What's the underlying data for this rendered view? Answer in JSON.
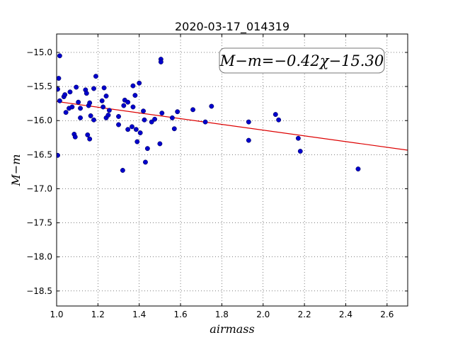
{
  "chart_data": {
    "type": "scatter",
    "title": "2020-03-17_014319",
    "xlabel": "airmass",
    "ylabel": "M−m",
    "xlim": [
      1.0,
      2.7
    ],
    "ylim": [
      -18.72,
      -14.73
    ],
    "y_inverted": false,
    "x_ticks": [
      1.0,
      1.2,
      1.4,
      1.6,
      1.8,
      2.0,
      2.2,
      2.4,
      2.6
    ],
    "x_tick_labels": [
      "1.0",
      "1.2",
      "1.4",
      "1.6",
      "1.8",
      "2.0",
      "2.2",
      "2.4",
      "2.6"
    ],
    "y_ticks": [
      -15.0,
      -15.5,
      -16.0,
      -16.5,
      -17.0,
      -17.5,
      -18.0,
      -18.5
    ],
    "y_tick_labels": [
      "−15.0",
      "−15.5",
      "−16.0",
      "−16.5",
      "−17.0",
      "−17.5",
      "−18.0",
      "−18.5"
    ],
    "grid": true,
    "annotation": "M−m=−0.42χ−15.30",
    "annotation_position": "top-right",
    "series": [
      {
        "kind": "points",
        "color": "#0000cc",
        "points": [
          [
            1.005,
            -15.54
          ],
          [
            1.005,
            -16.51
          ],
          [
            1.01,
            -15.38
          ],
          [
            1.015,
            -15.05
          ],
          [
            1.015,
            -15.71
          ],
          [
            1.035,
            -15.65
          ],
          [
            1.04,
            -15.62
          ],
          [
            1.045,
            -15.88
          ],
          [
            1.06,
            -15.82
          ],
          [
            1.065,
            -15.58
          ],
          [
            1.075,
            -15.8
          ],
          [
            1.085,
            -16.2
          ],
          [
            1.09,
            -16.24
          ],
          [
            1.095,
            -15.51
          ],
          [
            1.105,
            -15.73
          ],
          [
            1.115,
            -15.82
          ],
          [
            1.115,
            -15.96
          ],
          [
            1.14,
            -15.55
          ],
          [
            1.145,
            -15.6
          ],
          [
            1.15,
            -16.21
          ],
          [
            1.155,
            -15.78
          ],
          [
            1.16,
            -15.74
          ],
          [
            1.16,
            -16.27
          ],
          [
            1.165,
            -15.93
          ],
          [
            1.18,
            -15.53
          ],
          [
            1.18,
            -15.99
          ],
          [
            1.19,
            -15.35
          ],
          [
            1.22,
            -15.71
          ],
          [
            1.225,
            -15.8
          ],
          [
            1.23,
            -15.52
          ],
          [
            1.24,
            -15.64
          ],
          [
            1.24,
            -15.96
          ],
          [
            1.25,
            -15.92
          ],
          [
            1.255,
            -15.85
          ],
          [
            1.3,
            -16.06
          ],
          [
            1.3,
            -15.94
          ],
          [
            1.32,
            -16.73
          ],
          [
            1.325,
            -15.78
          ],
          [
            1.33,
            -15.7
          ],
          [
            1.345,
            -16.13
          ],
          [
            1.345,
            -15.73
          ],
          [
            1.365,
            -16.09
          ],
          [
            1.37,
            -15.49
          ],
          [
            1.37,
            -15.8
          ],
          [
            1.38,
            -15.63
          ],
          [
            1.385,
            -16.13
          ],
          [
            1.39,
            -16.31
          ],
          [
            1.4,
            -15.45
          ],
          [
            1.405,
            -16.18
          ],
          [
            1.42,
            -15.86
          ],
          [
            1.425,
            -15.99
          ],
          [
            1.43,
            -16.61
          ],
          [
            1.44,
            -16.41
          ],
          [
            1.46,
            -16.02
          ],
          [
            1.475,
            -15.98
          ],
          [
            1.5,
            -16.34
          ],
          [
            1.505,
            -15.1
          ],
          [
            1.505,
            -15.14
          ],
          [
            1.51,
            -15.89
          ],
          [
            1.56,
            -15.96
          ],
          [
            1.57,
            -16.12
          ],
          [
            1.585,
            -15.87
          ],
          [
            1.66,
            -15.84
          ],
          [
            1.72,
            -16.02
          ],
          [
            1.75,
            -15.79
          ],
          [
            1.93,
            -16.02
          ],
          [
            1.93,
            -16.29
          ],
          [
            2.06,
            -15.91
          ],
          [
            2.075,
            -15.99
          ],
          [
            2.17,
            -16.26
          ],
          [
            2.18,
            -16.45
          ],
          [
            2.46,
            -16.71
          ]
        ]
      },
      {
        "kind": "fit-line",
        "color": "#dd0000",
        "slope": -0.42,
        "intercept": -15.3
      }
    ]
  }
}
